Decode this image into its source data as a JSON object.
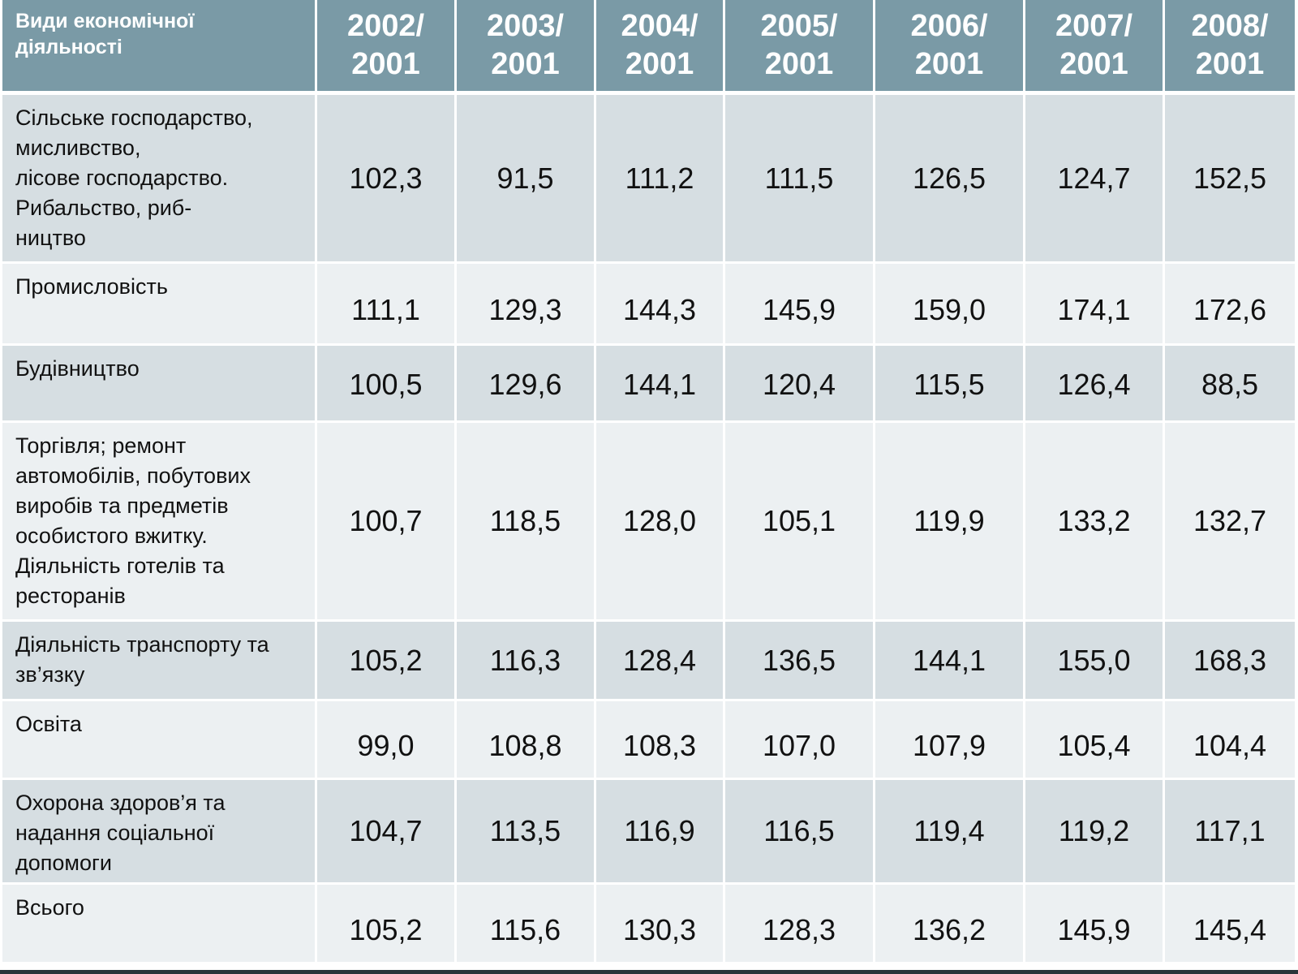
{
  "table": {
    "header": {
      "first": "Види економічної діяльності",
      "years": [
        [
          "2002/",
          "2001"
        ],
        [
          "2003/",
          "2001"
        ],
        [
          "2004/",
          "2001"
        ],
        [
          "2005/",
          "2001"
        ],
        [
          "2006/",
          "2001"
        ],
        [
          "2007/",
          "2001"
        ],
        [
          "2008/",
          "2001"
        ]
      ]
    },
    "rows": [
      {
        "label": "Сільське господарство,\nмисливство,\nлісове господарство.\nРибальство, риб-\nництво",
        "values": [
          "102,3",
          "91,5",
          "111,2",
          "111,5",
          "126,5",
          "124,7",
          "152,5"
        ]
      },
      {
        "label": "Промисловість",
        "values": [
          "111,1",
          "129,3",
          "144,3",
          "145,9",
          "159,0",
          "174,1",
          "172,6"
        ]
      },
      {
        "label": "Будівництво",
        "values": [
          "100,5",
          "129,6",
          "144,1",
          "120,4",
          "115,5",
          "126,4",
          "88,5"
        ]
      },
      {
        "label": "Торгівля; ремонт\nавтомобілів, побутових\nвиробів та предметів\nособистого вжитку.\nДіяльність готелів та\nресторанів",
        "values": [
          "100,7",
          "118,5",
          "128,0",
          "105,1",
          "119,9",
          "133,2",
          "132,7"
        ]
      },
      {
        "label": "Діяльність транспорту та\nзв’язку",
        "values": [
          "105,2",
          "116,3",
          "128,4",
          "136,5",
          "144,1",
          "155,0",
          "168,3"
        ]
      },
      {
        "label": "Освіта",
        "values": [
          "99,0",
          "108,8",
          "108,3",
          "107,0",
          "107,9",
          "105,4",
          "104,4"
        ]
      },
      {
        "label": "Охорона здоров’я та\nнадання соціальної\nдопомоги",
        "values": [
          "104,7",
          "113,5",
          "116,9",
          "116,5",
          "119,4",
          "119,2",
          "117,1"
        ]
      },
      {
        "label": "Всього",
        "values": [
          "105,2",
          "115,6",
          "130,3",
          "128,3",
          "136,2",
          "145,9",
          "145,4"
        ]
      }
    ]
  },
  "colors": {
    "header_bg": "#7a9aa6",
    "row_dark": "#d6dee2",
    "row_light": "#ecf0f2"
  }
}
